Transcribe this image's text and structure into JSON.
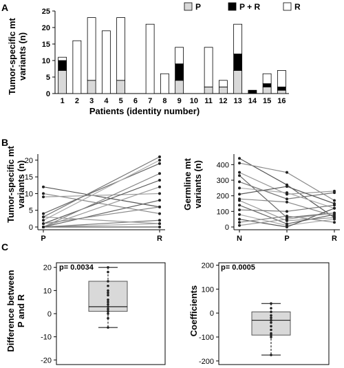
{
  "figure": {
    "panel_labels": [
      "A",
      "B",
      "C"
    ]
  },
  "chart_data": [
    {
      "panel": "A",
      "type": "bar",
      "stacked": true,
      "categories": [
        "1",
        "2",
        "3",
        "4",
        "5",
        "6",
        "7",
        "8",
        "9",
        "10",
        "11",
        "12",
        "13",
        "14",
        "15",
        "16"
      ],
      "series": [
        {
          "name": "P",
          "color": "#d9d9d9",
          "values": [
            7,
            0,
            4,
            0,
            4,
            0,
            0,
            0,
            4,
            0,
            2,
            2,
            7,
            0,
            2,
            1
          ]
        },
        {
          "name": "P + R",
          "color": "#000000",
          "values": [
            3,
            0,
            0,
            0,
            0,
            0,
            0,
            0,
            5,
            0,
            0,
            0,
            5,
            1,
            1,
            1
          ]
        },
        {
          "name": "R",
          "color": "#ffffff",
          "values": [
            1,
            16,
            19,
            19,
            19,
            0,
            21,
            6,
            5,
            0,
            12,
            2,
            9,
            0,
            3,
            5
          ]
        }
      ],
      "xlabel": "Patients (identity number)",
      "ylabel": "Tumor-specific mt variants (n)",
      "ylabel_lines": [
        "Tumor-specific mt",
        "variants (n)"
      ],
      "ylim": [
        0,
        25
      ],
      "yticks": [
        0,
        5,
        10,
        15,
        20,
        25
      ],
      "legend_position": "top"
    },
    {
      "panel": "B-left",
      "type": "line",
      "categories": [
        "P",
        "R"
      ],
      "series": [
        {
          "values": [
            12,
            6
          ]
        },
        {
          "values": [
            10,
            4
          ]
        },
        {
          "values": [
            9,
            10
          ]
        },
        {
          "values": [
            4,
            19
          ]
        },
        {
          "values": [
            3,
            21
          ]
        },
        {
          "values": [
            2,
            20
          ]
        },
        {
          "values": [
            1,
            14
          ]
        },
        {
          "values": [
            0,
            16
          ]
        },
        {
          "values": [
            0,
            12
          ]
        },
        {
          "values": [
            0,
            8
          ]
        },
        {
          "values": [
            0,
            2
          ]
        },
        {
          "values": [
            0,
            1
          ]
        },
        {
          "values": [
            0,
            0
          ]
        },
        {
          "values": [
            1,
            6
          ]
        },
        {
          "values": [
            3,
            1
          ]
        }
      ],
      "ylabel": "Tumor-specific mt variants (n)",
      "ylabel_lines": [
        "Tumor-specific mt",
        "variants (n)"
      ],
      "ylim": [
        0,
        21
      ],
      "yticks": [
        0,
        5,
        10,
        15,
        20
      ]
    },
    {
      "panel": "B-right",
      "type": "line",
      "categories": [
        "N",
        "P",
        "R"
      ],
      "series": [
        {
          "values": [
            440,
            270,
            60
          ]
        },
        {
          "values": [
            410,
            350,
            170
          ]
        },
        {
          "values": [
            350,
            210,
            230
          ]
        },
        {
          "values": [
            330,
            60,
            90
          ]
        },
        {
          "values": [
            290,
            180,
            220
          ]
        },
        {
          "values": [
            250,
            220,
            120
          ]
        },
        {
          "values": [
            210,
            260,
            150
          ]
        },
        {
          "values": [
            180,
            160,
            70
          ]
        },
        {
          "values": [
            170,
            40,
            60
          ]
        },
        {
          "values": [
            140,
            20,
            80
          ]
        },
        {
          "values": [
            110,
            100,
            140
          ]
        },
        {
          "values": [
            80,
            10,
            50
          ]
        },
        {
          "values": [
            50,
            0,
            120
          ]
        },
        {
          "values": [
            30,
            70,
            30
          ]
        },
        {
          "values": [
            10,
            50,
            90
          ]
        }
      ],
      "ylabel": "Germline mt variants (n)",
      "ylabel_lines": [
        "Germline mt",
        "variants (n)"
      ],
      "ylim": [
        0,
        450
      ],
      "yticks": [
        0,
        100,
        200,
        300,
        400
      ]
    },
    {
      "panel": "C-left",
      "type": "box",
      "box": {
        "min": -6,
        "q1": 1,
        "median": 3,
        "q3": 14,
        "max": 20
      },
      "points": [
        20,
        18,
        14,
        12,
        10,
        9,
        8,
        6,
        5,
        4,
        3,
        2,
        1,
        1,
        0,
        -2,
        -6
      ],
      "annotation": "p= 0.0034",
      "ylabel": "Difference between P and R",
      "ylabel_lines": [
        "Difference between",
        "P and R"
      ],
      "ylim": [
        -22,
        22
      ],
      "yticks": [
        -20,
        -10,
        0,
        10,
        20
      ]
    },
    {
      "panel": "C-right",
      "type": "box",
      "box": {
        "min": -175,
        "q1": -92,
        "median": -30,
        "q3": 5,
        "max": 40
      },
      "points": [
        40,
        20,
        5,
        -10,
        -20,
        -30,
        -40,
        -55,
        -70,
        -85,
        -92,
        -100,
        -175
      ],
      "annotation": "p= 0.0005",
      "ylabel": "Coefficients",
      "ylabel_lines": [
        "Coefficients"
      ],
      "ylim": [
        -215,
        210
      ],
      "yticks": [
        -200,
        -100,
        0,
        100,
        200
      ]
    }
  ]
}
